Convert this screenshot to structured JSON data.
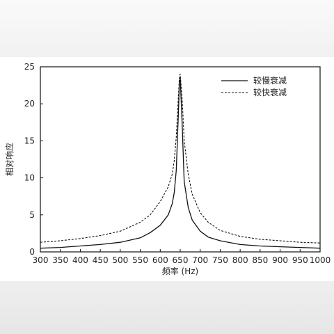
{
  "chart_data": {
    "type": "line",
    "title": "",
    "xlabel": "频率 (Hz)",
    "ylabel": "相对响应",
    "xlim": [
      300,
      1000
    ],
    "ylim": [
      0,
      25
    ],
    "xticks": [
      300,
      350,
      400,
      450,
      500,
      550,
      600,
      650,
      700,
      750,
      800,
      850,
      900,
      950,
      1000
    ],
    "yticks": [
      0,
      5,
      10,
      15,
      20,
      25
    ],
    "grid": false,
    "legend_position": "top-right",
    "x": [
      300,
      350,
      400,
      450,
      500,
      550,
      575,
      600,
      620,
      630,
      635,
      640,
      645,
      648,
      650,
      655,
      660,
      670,
      680,
      700,
      720,
      750,
      800,
      850,
      900,
      950,
      1000
    ],
    "series": [
      {
        "name": "较慢衰减",
        "style": "solid",
        "color": "#111111",
        "values": [
          0.5,
          0.6,
          0.8,
          1.0,
          1.3,
          1.9,
          2.6,
          3.6,
          5.0,
          6.5,
          8.0,
          11.0,
          18.0,
          23.0,
          23.5,
          17.0,
          9.5,
          6.0,
          4.3,
          2.8,
          2.0,
          1.5,
          1.0,
          0.8,
          0.7,
          0.6,
          0.5
        ]
      },
      {
        "name": "较快衰减",
        "style": "dashed",
        "color": "#111111",
        "values": [
          1.3,
          1.5,
          1.8,
          2.2,
          2.8,
          4.0,
          5.0,
          6.8,
          8.8,
          10.5,
          12.3,
          15.5,
          20.5,
          23.8,
          24.0,
          20.5,
          15.0,
          10.5,
          7.8,
          5.3,
          4.0,
          2.9,
          2.1,
          1.7,
          1.5,
          1.3,
          1.2
        ]
      }
    ]
  }
}
